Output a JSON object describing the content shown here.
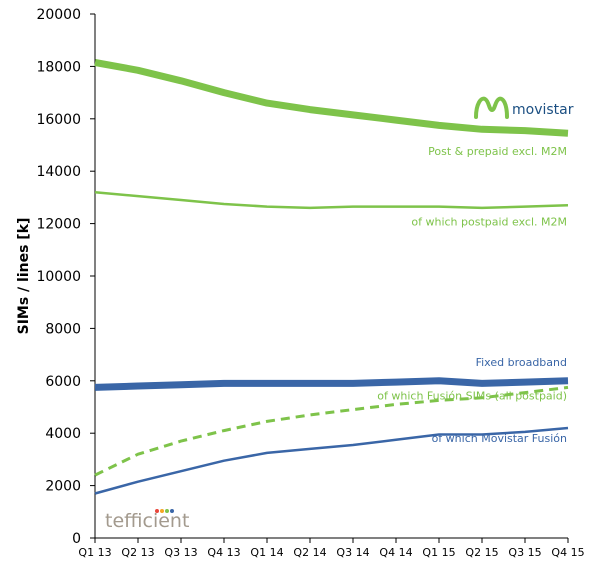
{
  "chart_data": {
    "type": "line",
    "categories": [
      "Q1 13",
      "Q2 13",
      "Q3 13",
      "Q4 13",
      "Q1 14",
      "Q2 14",
      "Q3 14",
      "Q4 14",
      "Q1 15",
      "Q2 15",
      "Q3 15",
      "Q4 15"
    ],
    "ylabel": "SIMs / lines [k]",
    "xlabel": "",
    "ylim": [
      0,
      20000
    ],
    "yticks": [
      "0",
      "2000",
      "4000",
      "6000",
      "8000",
      "10000",
      "12000",
      "14000",
      "16000",
      "18000",
      "20000"
    ],
    "grid": false,
    "series": [
      {
        "name": "Post & prepaid excl. M2M",
        "color": "#7ec34a",
        "style": "thick",
        "values": [
          18150,
          17850,
          17450,
          17000,
          16600,
          16350,
          16150,
          15950,
          15750,
          15600,
          15550,
          15450
        ]
      },
      {
        "name": "of which postpaid excl. M2M",
        "color": "#7ec34a",
        "style": "thin",
        "values": [
          13200,
          13050,
          12900,
          12750,
          12650,
          12600,
          12650,
          12650,
          12650,
          12600,
          12650,
          12700
        ]
      },
      {
        "name": "Fixed broadband",
        "color": "#3a66a7",
        "style": "thick",
        "values": [
          5750,
          5800,
          5850,
          5900,
          5900,
          5900,
          5900,
          5950,
          6000,
          5900,
          5950,
          6000
        ]
      },
      {
        "name": "of which Fusión SIMs (all postpaid)",
        "color": "#7ec34a",
        "style": "dashed",
        "values": [
          2400,
          3200,
          3700,
          4100,
          4450,
          4700,
          4900,
          5100,
          5250,
          5350,
          5550,
          5750
        ]
      },
      {
        "name": "of which Movistar Fusión",
        "color": "#3a66a7",
        "style": "thin",
        "values": [
          1700,
          2150,
          2550,
          2950,
          3250,
          3400,
          3550,
          3750,
          3950,
          3950,
          4050,
          4200
        ]
      }
    ]
  },
  "brand": {
    "name": "movistar",
    "logo_color": "#7ec34a",
    "text_color": "#1b4f82"
  },
  "watermark": {
    "text": "tefficient",
    "dot_colors": [
      "#e8463a",
      "#f5a623",
      "#7ec34a",
      "#3a66a7"
    ]
  }
}
